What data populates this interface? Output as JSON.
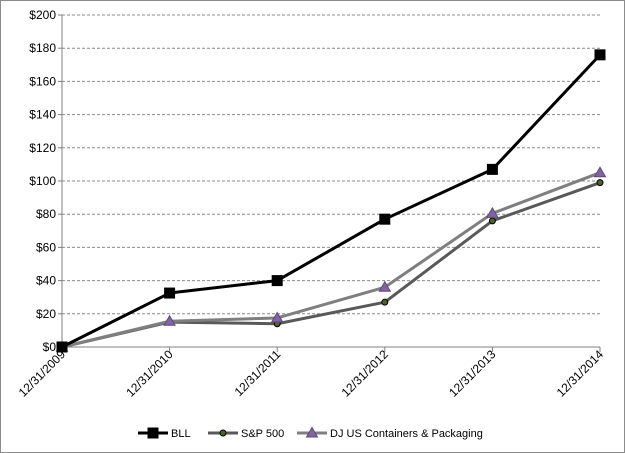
{
  "chart_data": {
    "type": "line",
    "categories": [
      "12/31/2009",
      "12/31/2010",
      "12/31/2011",
      "12/31/2012",
      "12/31/2013",
      "12/31/2014"
    ],
    "series": [
      {
        "name": "BLL",
        "values": [
          0,
          32.5,
          40,
          77,
          107,
          176
        ],
        "color": "#000000",
        "marker": "square"
      },
      {
        "name": "S&P 500",
        "values": [
          0,
          15,
          14,
          27,
          76,
          99
        ],
        "color": "#595959",
        "marker": "circle"
      },
      {
        "name": "DJ US Containers & Packaging",
        "values": [
          0,
          15.5,
          17.5,
          36,
          80.5,
          105
        ],
        "color": "#7f7f7f",
        "marker": "triangle"
      }
    ],
    "y_tick_labels": [
      "$0",
      "$20",
      "$40",
      "$60",
      "$80",
      "$100",
      "$120",
      "$140",
      "$160",
      "$180",
      "$200"
    ],
    "ylim": [
      0,
      200
    ],
    "grid": true,
    "legend_position": "bottom"
  }
}
